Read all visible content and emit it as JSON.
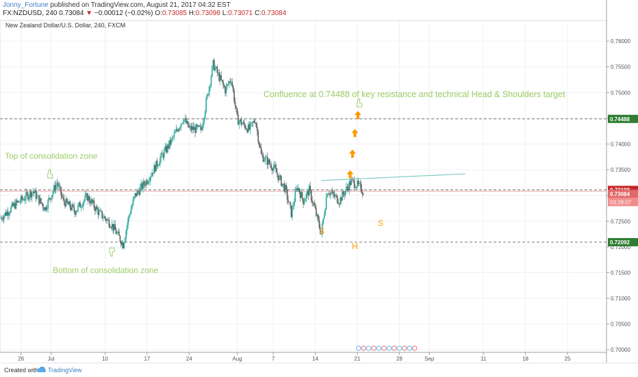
{
  "header": {
    "author": "Jonny_Fortune",
    "published": "published on TradingView.com, August 21, 2017 04:32 EST",
    "symbol": "FX:NZDUSD, 240",
    "last": "0.73084",
    "change": "−0.00012 (−0.02%)",
    "ohlc": {
      "o_label": "O:",
      "o": "0.73085",
      "h_label": "H:",
      "h": "0.73098",
      "l_label": "L:",
      "l": "0.73071",
      "c_label": "C:",
      "c": "0.73084"
    }
  },
  "chart_data": {
    "type": "candlestick",
    "title": "New Zealand Dollar/U.S. Dollar, 240, FXCM",
    "ylim": [
      0.6995,
      0.764
    ],
    "y_ticks": [
      "0.76000",
      "0.75500",
      "0.75000",
      "0.74500",
      "0.74000",
      "0.73500",
      "0.73000",
      "0.72500",
      "0.72000",
      "0.71500",
      "0.71000",
      "0.70500",
      "0.70000"
    ],
    "y_tick_values": [
      0.76,
      0.755,
      0.75,
      0.745,
      0.74,
      0.735,
      0.73,
      0.725,
      0.72,
      0.715,
      0.71,
      0.705,
      0.7
    ],
    "x_ticks": [
      "26",
      "Jul",
      "10",
      "17",
      "24",
      "Aug",
      "7",
      "14",
      "21",
      "28",
      "Sep",
      "11",
      "18",
      "25"
    ],
    "x_tick_days": [
      -5,
      0,
      9,
      16,
      23,
      31,
      37,
      44,
      51,
      58,
      63,
      72,
      79,
      86
    ],
    "xlim": [
      -8.5,
      92.5
    ],
    "price_path_days": [
      -8.5,
      -6,
      -3,
      -1,
      1,
      2,
      4,
      6,
      8,
      10,
      12,
      13,
      14,
      16,
      18,
      20,
      22,
      23,
      25,
      27,
      29,
      30,
      31,
      33,
      34,
      35,
      37,
      39,
      40,
      41,
      42,
      43,
      44,
      45,
      46,
      48,
      50,
      51,
      52
    ],
    "price_path_values": [
      0.7255,
      0.7282,
      0.7308,
      0.7275,
      0.7325,
      0.729,
      0.727,
      0.7298,
      0.7266,
      0.7245,
      0.7205,
      0.7262,
      0.73,
      0.733,
      0.7368,
      0.7405,
      0.745,
      0.743,
      0.7428,
      0.7555,
      0.7505,
      0.7528,
      0.7448,
      0.7428,
      0.7448,
      0.7378,
      0.7355,
      0.7312,
      0.7265,
      0.7318,
      0.729,
      0.731,
      0.727,
      0.7225,
      0.731,
      0.729,
      0.7328,
      0.732,
      0.7308
    ],
    "levels": [
      {
        "value": 0.74488,
        "label": "0.74488",
        "color": "#2e7d32"
      },
      {
        "value": 0.73108,
        "label": "0.73108",
        "color": "#c62828"
      },
      {
        "value": 0.73084,
        "label": "0.73084",
        "color": "#e06a6a"
      },
      {
        "value": 0.72092,
        "label": "0.72092",
        "color": "#2e7d32"
      }
    ],
    "countdown": "03:28:07",
    "neckline": {
      "x0": 45.0,
      "y0": 0.7329,
      "x1": 69.0,
      "y1": 0.7342
    },
    "annotations": {
      "confluence": "Confluence at 0.74488 of key resistance and technical Head & Shoulders target",
      "top_zone": "Top of consolidation zone",
      "bottom_zone": "Bottom of consolidation zone",
      "shoulder_left": "S",
      "head": "H",
      "shoulder_right": "S"
    },
    "colors": {
      "up": "#26a69a",
      "down": "#5a5a5a",
      "accent": "#ff9800",
      "note": "#9ccc65",
      "grid": "#eef0f3"
    }
  },
  "footer": {
    "created": "Created with",
    "brand": "TradingView"
  }
}
